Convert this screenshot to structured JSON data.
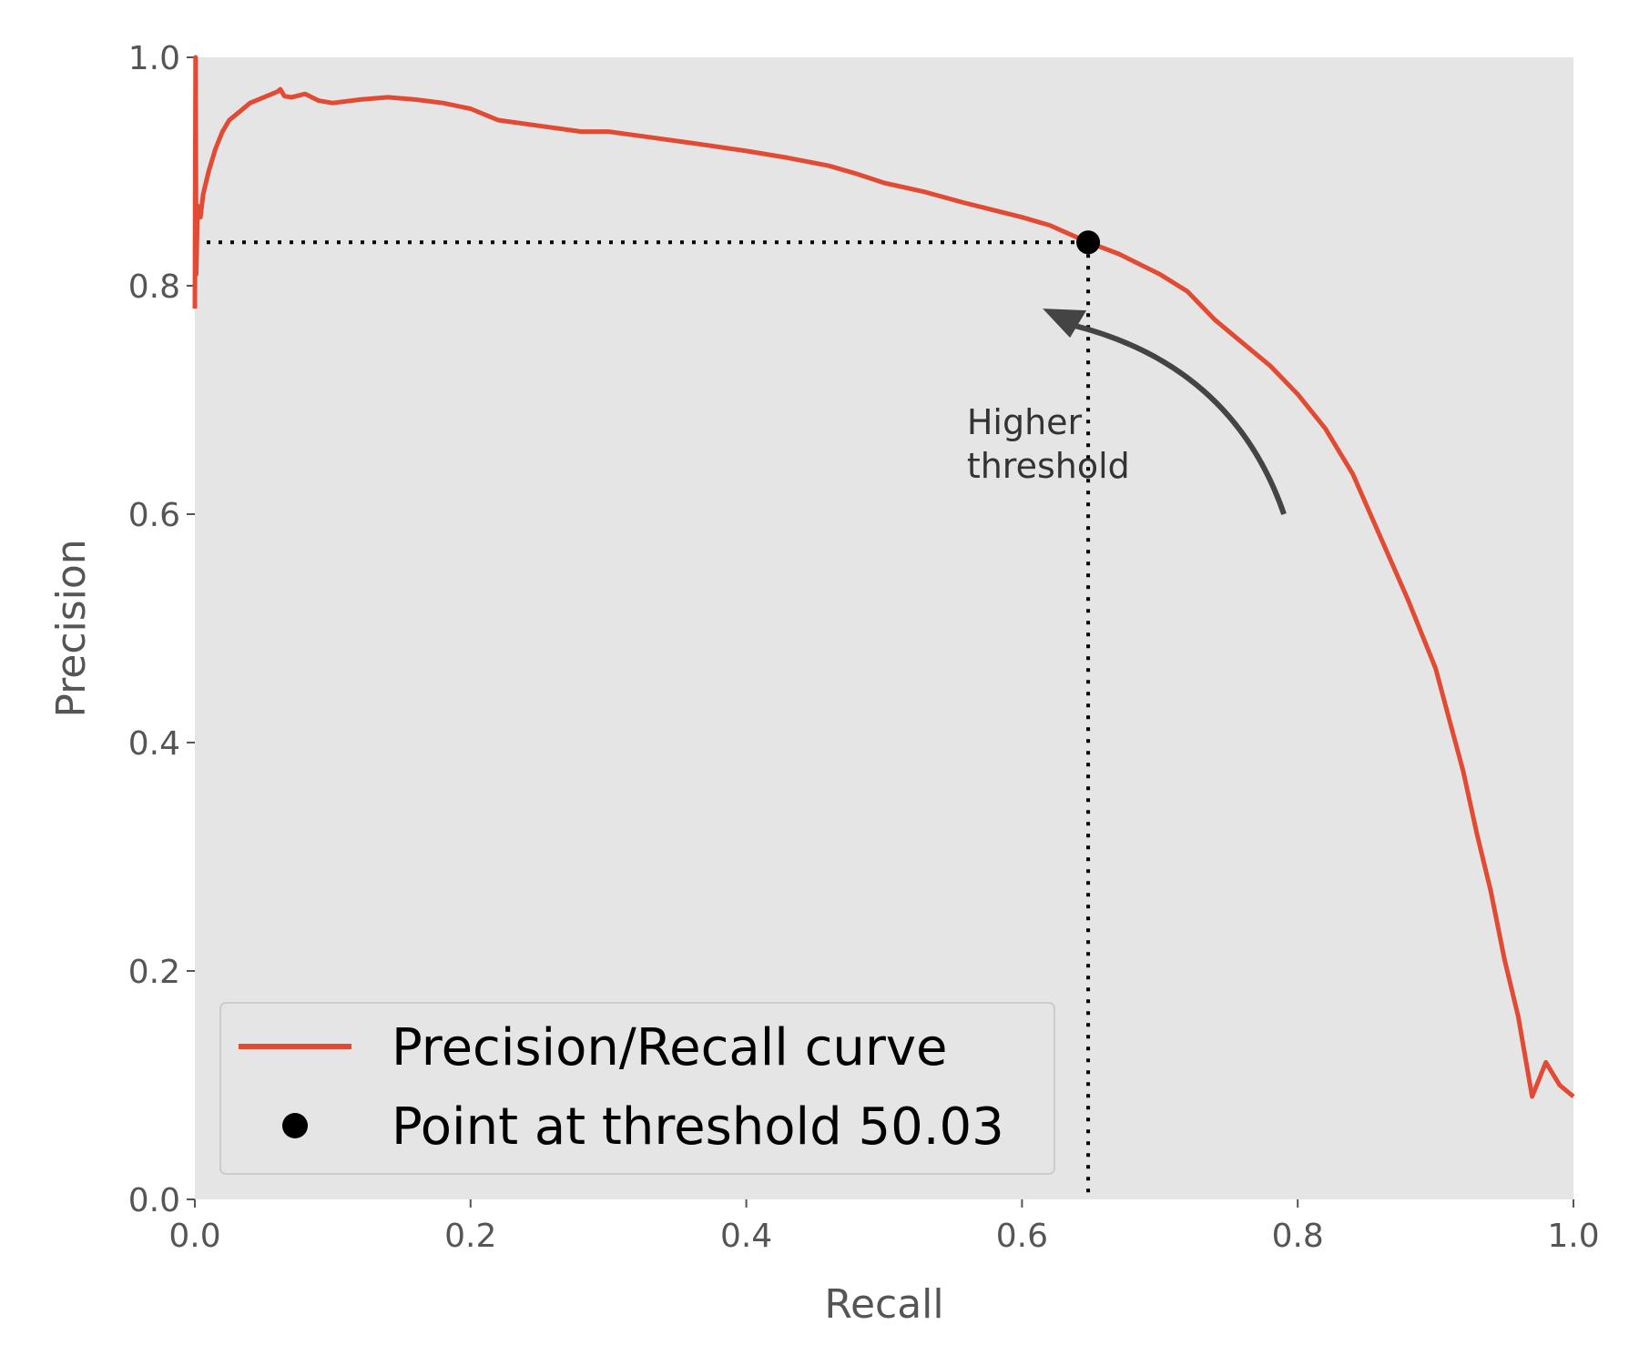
{
  "chart_data": {
    "type": "line",
    "xlabel": "Recall",
    "ylabel": "Precision",
    "xlim": [
      0,
      1
    ],
    "ylim": [
      0,
      1
    ],
    "x_ticks": [
      "0.0",
      "0.2",
      "0.4",
      "0.6",
      "0.8",
      "1.0"
    ],
    "y_ticks": [
      "0.0",
      "0.2",
      "0.4",
      "0.6",
      "0.8",
      "1.0"
    ],
    "grid": false,
    "legend_position": "bottom-left",
    "colors": {
      "curve": "#e24a33",
      "point": "#000000",
      "background": "#e5e5e5",
      "arrow": "#444444"
    },
    "series": [
      {
        "name": "Precision/Recall curve",
        "x": [
          0.0,
          0.0005,
          0.001,
          0.002,
          0.004,
          0.006,
          0.01,
          0.015,
          0.02,
          0.025,
          0.03,
          0.04,
          0.05,
          0.06,
          0.062,
          0.065,
          0.07,
          0.08,
          0.09,
          0.1,
          0.12,
          0.14,
          0.16,
          0.18,
          0.2,
          0.22,
          0.25,
          0.28,
          0.3,
          0.33,
          0.36,
          0.4,
          0.43,
          0.46,
          0.48,
          0.5,
          0.53,
          0.56,
          0.6,
          0.62,
          0.648,
          0.67,
          0.7,
          0.72,
          0.74,
          0.76,
          0.78,
          0.8,
          0.82,
          0.84,
          0.86,
          0.88,
          0.9,
          0.91,
          0.92,
          0.93,
          0.94,
          0.95,
          0.96,
          0.97,
          0.98,
          0.99,
          1.0
        ],
        "y": [
          0.78,
          1.0,
          0.81,
          0.87,
          0.86,
          0.88,
          0.9,
          0.92,
          0.935,
          0.945,
          0.95,
          0.96,
          0.965,
          0.97,
          0.972,
          0.966,
          0.965,
          0.968,
          0.962,
          0.96,
          0.963,
          0.965,
          0.963,
          0.96,
          0.955,
          0.945,
          0.94,
          0.935,
          0.935,
          0.93,
          0.925,
          0.918,
          0.912,
          0.905,
          0.898,
          0.89,
          0.882,
          0.872,
          0.86,
          0.853,
          0.838,
          0.828,
          0.81,
          0.795,
          0.77,
          0.75,
          0.73,
          0.705,
          0.675,
          0.635,
          0.58,
          0.525,
          0.465,
          0.42,
          0.375,
          0.32,
          0.27,
          0.21,
          0.16,
          0.09,
          0.12,
          0.1,
          0.09
        ]
      },
      {
        "name": "Point at threshold 50.03",
        "x": [
          0.648
        ],
        "y": [
          0.838
        ]
      }
    ],
    "annotations": [
      {
        "text": [
          "Higher",
          "threshold"
        ],
        "arrow_from": [
          0.79,
          0.6
        ],
        "arrow_to": [
          0.615,
          0.78
        ]
      }
    ]
  }
}
